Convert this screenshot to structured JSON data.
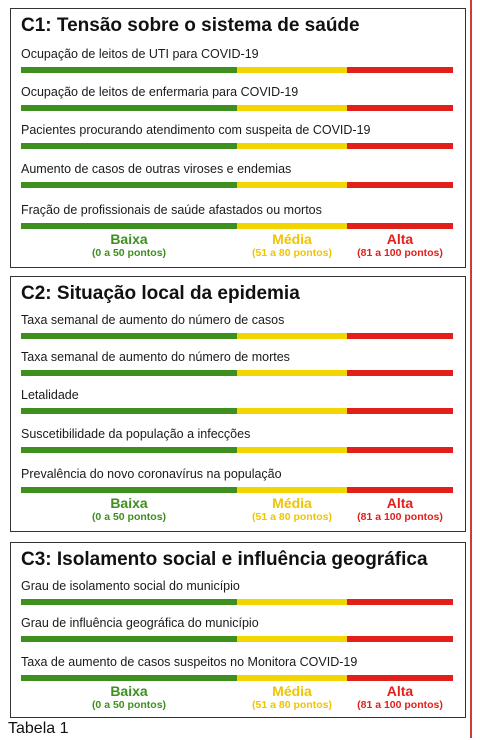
{
  "colors": {
    "low": "#3d8f1e",
    "medium": "#f3d600",
    "high": "#e2201b"
  },
  "legend": {
    "low": {
      "label": "Baixa",
      "range": "(0 a 50 pontos)",
      "color": "#3d8f1e"
    },
    "medium": {
      "label": "Média",
      "range": "(51 a 80 pontos)",
      "color": "#f0c400"
    },
    "high": {
      "label": "Alta",
      "range": "(81 a 100 pontos)",
      "color": "#e2201b"
    }
  },
  "panels": [
    {
      "title": "C1: Tensão sobre o sistema  de saúde",
      "rows": [
        "Ocupação de leitos de UTI para COVID-19",
        "Ocupação de leitos de enfermaria para COVID-19",
        "Pacientes procurando atendimento com  suspeita de COVID-19",
        "Aumento de casos de outras viroses e endemias",
        "Fração de profissionais de saúde afastados ou mortos"
      ]
    },
    {
      "title": "C2: Situação local da epidemia",
      "rows": [
        "Taxa semanal de aumento do número de casos",
        "Taxa semanal de aumento do número de mortes",
        "Letalidade",
        "Suscetibilidade da população a infecções",
        "Prevalência do novo coronavírus na população"
      ]
    },
    {
      "title": "C3: Isolamento social e influência geográfica",
      "rows": [
        "Grau de isolamento social do município",
        "Grau de influência geográfica do município",
        "Taxa de aumento de casos suspeitos no Monitora COVID-19"
      ]
    }
  ],
  "caption": "Tabela 1"
}
